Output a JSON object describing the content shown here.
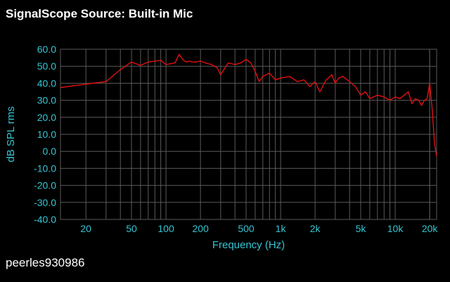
{
  "header": {
    "title": "SignalScope Source:  Built-in Mic"
  },
  "footer": {
    "username": "peerles930986"
  },
  "chart_data": {
    "type": "line",
    "xscale": "log",
    "xlabel": "Frequency (Hz)",
    "ylabel": "dB SPL rms",
    "xlim": [
      12,
      23000
    ],
    "ylim": [
      -40,
      60
    ],
    "grid": true,
    "colors": {
      "background": "#000000",
      "line": "#e01010",
      "axis_text": "#34c6d3",
      "grid": "#5a5a5a"
    },
    "yticks": [
      {
        "v": 60,
        "label": "60.0"
      },
      {
        "v": 50,
        "label": "50.0"
      },
      {
        "v": 40,
        "label": "40.0"
      },
      {
        "v": 30,
        "label": "30.0"
      },
      {
        "v": 20,
        "label": "20.0"
      },
      {
        "v": 10,
        "label": "10.0"
      },
      {
        "v": 0,
        "label": "0.0"
      },
      {
        "v": -10,
        "label": "-10.0"
      },
      {
        "v": -20,
        "label": "-20.0"
      },
      {
        "v": -30,
        "label": "-30.0"
      },
      {
        "v": -40,
        "label": "-40.0"
      }
    ],
    "xticks": [
      {
        "v": 20,
        "label": "20"
      },
      {
        "v": 50,
        "label": "50"
      },
      {
        "v": 100,
        "label": "100"
      },
      {
        "v": 200,
        "label": "200"
      },
      {
        "v": 500,
        "label": "500"
      },
      {
        "v": 1000,
        "label": "1k"
      },
      {
        "v": 2000,
        "label": "2k"
      },
      {
        "v": 5000,
        "label": "5k"
      },
      {
        "v": 10000,
        "label": "10k"
      },
      {
        "v": 20000,
        "label": "20k"
      }
    ],
    "series": [
      {
        "x": [
          12,
          20,
          30,
          40,
          50,
          60,
          70,
          80,
          90,
          100,
          110,
          120,
          130,
          140,
          150,
          160,
          170,
          180,
          200,
          220,
          250,
          280,
          300,
          320,
          350,
          400,
          450,
          500,
          550,
          600,
          650,
          700,
          800,
          900,
          1000,
          1200,
          1400,
          1600,
          1800,
          2000,
          2200,
          2500,
          2800,
          3000,
          3200,
          3500,
          4000,
          4500,
          5000,
          5500,
          6000,
          7000,
          8000,
          9000,
          10000,
          11000,
          12000,
          13000,
          14000,
          15000,
          16000,
          17000,
          18000,
          19000,
          20000,
          21000,
          22000,
          23000
        ],
        "y": [
          37.5,
          39.5,
          41,
          48,
          52.5,
          50.5,
          52.5,
          53,
          53.5,
          51,
          51.5,
          52,
          57,
          54,
          52.5,
          53,
          52.5,
          52.5,
          53,
          52,
          51,
          49,
          45,
          48,
          52,
          51,
          52,
          54,
          52,
          47,
          41,
          44,
          46,
          42,
          43,
          44,
          41,
          42,
          38,
          41,
          35,
          42,
          45,
          40,
          43,
          44,
          41,
          38,
          33,
          35,
          31,
          33,
          32,
          30,
          32,
          31,
          33,
          35,
          28,
          31,
          30,
          27,
          30,
          31,
          40,
          25,
          5,
          -3
        ]
      }
    ]
  }
}
